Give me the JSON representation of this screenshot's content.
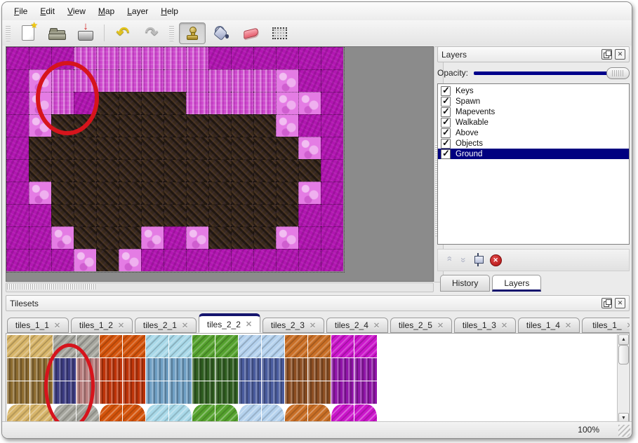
{
  "menu": {
    "items": [
      "File",
      "Edit",
      "View",
      "Map",
      "Layer",
      "Help"
    ]
  },
  "toolbar": {
    "items": [
      {
        "type": "handle"
      },
      {
        "type": "button",
        "id": "new-file",
        "icon": "new-file-icon"
      },
      {
        "type": "button",
        "id": "open",
        "icon": "open-folder-icon"
      },
      {
        "type": "button",
        "id": "save",
        "icon": "save-icon"
      },
      {
        "type": "sep"
      },
      {
        "type": "button",
        "id": "undo",
        "icon": "undo-icon"
      },
      {
        "type": "button",
        "id": "redo",
        "icon": "redo-icon"
      },
      {
        "type": "handle"
      },
      {
        "type": "button",
        "id": "stamp-tool",
        "icon": "stamp-tool-icon",
        "active": true
      },
      {
        "type": "button",
        "id": "fill-tool",
        "icon": "fill-tool-icon"
      },
      {
        "type": "button",
        "id": "eraser-tool",
        "icon": "eraser-tool-icon"
      },
      {
        "type": "button",
        "id": "select-tool",
        "icon": "select-tool-icon"
      }
    ]
  },
  "map_view": {
    "tile_size": 32,
    "legend": {
      "g": "magenta-ground",
      "p": "pink-rough",
      "l": "light-pink-clump",
      "d": "dark-dirt"
    },
    "colors": {
      "g": "#b216b2",
      "p": "#ce4ace",
      "l": "#e47ce4",
      "d": "#37281c"
    },
    "grid": [
      "gggppppppgggggg",
      "glpppppppppplgg",
      "glpgddddppppllg",
      "glddddddddddlgg",
      "gddddddddddddlg",
      "gdddddddddddddg",
      "gldddddddddddlg",
      "ggdddddddddddgg",
      "ggldddlgldddlgg",
      "gggldlggggggggg"
    ],
    "annotation": {
      "shape": "ellipse",
      "color": "#d6141c"
    }
  },
  "layers_panel": {
    "title": "Layers",
    "opacity_label": "Opacity:",
    "opacity_value": 100,
    "layers": [
      {
        "name": "Keys",
        "visible": true
      },
      {
        "name": "Spawn",
        "visible": true
      },
      {
        "name": "Mapevents",
        "visible": true
      },
      {
        "name": "Walkable",
        "visible": true
      },
      {
        "name": "Above",
        "visible": true
      },
      {
        "name": "Objects",
        "visible": true
      },
      {
        "name": "Ground",
        "visible": true,
        "selected": true
      }
    ],
    "buttons": [
      {
        "id": "raise-layer",
        "icon": "chevron-up-icon",
        "enabled": false
      },
      {
        "id": "lower-layer",
        "icon": "chevron-down-icon",
        "enabled": false
      },
      {
        "id": "duplicate-layer",
        "icon": "duplicate-icon",
        "enabled": true
      },
      {
        "id": "delete-layer",
        "icon": "delete-icon",
        "enabled": true
      }
    ],
    "tabs": [
      {
        "label": "History",
        "active": false
      },
      {
        "label": "Layers",
        "active": true
      }
    ]
  },
  "tilesets_panel": {
    "title": "Tilesets",
    "tabs": [
      {
        "label": "tiles_1_1"
      },
      {
        "label": "tiles_1_2"
      },
      {
        "label": "tiles_2_1"
      },
      {
        "label": "tiles_2_2",
        "active": true
      },
      {
        "label": "tiles_2_3"
      },
      {
        "label": "tiles_2_4"
      },
      {
        "label": "tiles_2_5"
      },
      {
        "label": "tiles_1_3"
      },
      {
        "label": "tiles_1_4"
      },
      {
        "label": "tiles_1_",
        "truncated": true
      }
    ],
    "palette": {
      "tan": "#d7b56a",
      "stone": "#a6a69e",
      "lava": "#d4540c",
      "ice": "#a9d9e9",
      "vine": "#55a22e",
      "ltcr": "#b5d2ee",
      "opeb": "#c96f26",
      "mweb": "#cb16cb",
      "bark": "#8d6c31",
      "navy": "#3c3c82",
      "mauve": "#b97e7e",
      "fire": "#bf3409",
      "frost": "#6f9fc4",
      "dkgr": "#2f5d20",
      "dkcr": "#4a5c9e",
      "bpeb": "#8c4e22",
      "pweb": "#9015a8"
    },
    "grid": [
      [
        "tan",
        "tan",
        "stone",
        "stone",
        "lava",
        "lava",
        "ice",
        "ice",
        "vine",
        "vine",
        "ltcr",
        "ltcr",
        "opeb",
        "opeb",
        "mweb",
        "mweb"
      ],
      [
        "bark",
        "bark",
        "navy",
        "mauve",
        "fire",
        "fire",
        "frost",
        "frost",
        "dkgr",
        "dkgr",
        "dkcr",
        "dkcr",
        "bpeb",
        "bpeb",
        "pweb",
        "pweb"
      ],
      [
        "bark",
        "bark",
        "navy",
        "mauve",
        "fire",
        "fire",
        "frost",
        "frost",
        "dkgr",
        "dkgr",
        "dkcr",
        "dkcr",
        "bpeb",
        "bpeb",
        "pweb",
        "pweb"
      ],
      [
        "tan",
        "tan",
        "stone",
        "stone",
        "lava",
        "lava",
        "ice",
        "ice",
        "vine",
        "vine",
        "ltcr",
        "ltcr",
        "opeb",
        "opeb",
        "mweb",
        "mweb"
      ]
    ],
    "blob_row": 3,
    "circled_tile": {
      "row": 1,
      "col": 2,
      "key": "navy"
    },
    "annotation": {
      "shape": "ellipse",
      "color": "#d6141c"
    }
  },
  "status_bar": {
    "zoom": "100%"
  }
}
